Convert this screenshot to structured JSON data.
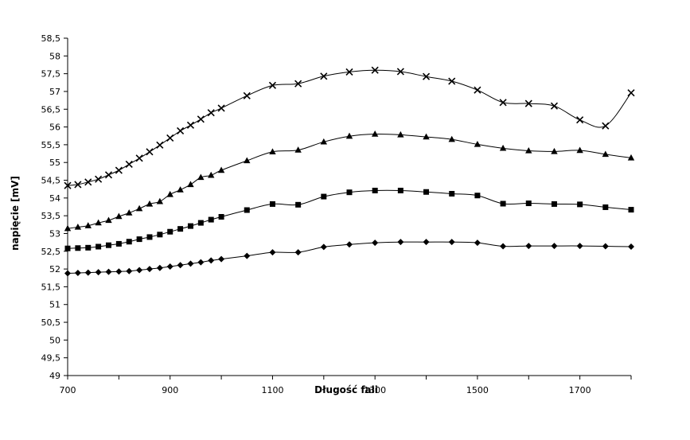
{
  "chart_data": {
    "type": "line",
    "title": "",
    "xlabel": "Długość fali",
    "ylabel": "napięcie [mV]",
    "xlim": [
      700,
      1800
    ],
    "ylim": [
      49,
      58.5
    ],
    "x_ticks": [
      700,
      900,
      1100,
      1300,
      1500,
      1700
    ],
    "y_ticks": [
      "49",
      "49,5",
      "50",
      "50,5",
      "51",
      "51,5",
      "52",
      "52,5",
      "53",
      "53,5",
      "54",
      "54,5",
      "55",
      "55,5",
      "56",
      "56,5",
      "57",
      "57,5",
      "58",
      "58,5"
    ],
    "grid": false,
    "legend": "none",
    "x": [
      700,
      720,
      740,
      760,
      780,
      800,
      820,
      840,
      860,
      880,
      900,
      920,
      940,
      960,
      980,
      1000,
      1050,
      1100,
      1150,
      1200,
      1250,
      1300,
      1350,
      1400,
      1450,
      1500,
      1550,
      1600,
      1650,
      1700,
      1750,
      1800
    ],
    "series": [
      {
        "marker": "x",
        "values": [
          54.35,
          54.38,
          54.45,
          54.53,
          54.65,
          54.78,
          54.95,
          55.12,
          55.3,
          55.49,
          55.69,
          55.89,
          56.05,
          56.22,
          56.4,
          56.53,
          56.88,
          57.17,
          57.22,
          57.43,
          57.55,
          57.6,
          57.56,
          57.42,
          57.29,
          57.04,
          56.69,
          56.66,
          56.59,
          56.2,
          56.03,
          56.96
        ]
      },
      {
        "marker": "triangle",
        "values": [
          53.14,
          53.18,
          53.22,
          53.3,
          53.37,
          53.48,
          53.58,
          53.7,
          53.83,
          53.9,
          54.1,
          54.23,
          54.38,
          54.58,
          54.64,
          54.78,
          55.05,
          55.3,
          55.35,
          55.58,
          55.74,
          55.8,
          55.78,
          55.72,
          55.65,
          55.51,
          55.4,
          55.33,
          55.31,
          55.34,
          55.23,
          55.13
        ]
      },
      {
        "marker": "square",
        "values": [
          52.58,
          52.59,
          52.6,
          52.63,
          52.67,
          52.71,
          52.77,
          52.84,
          52.9,
          52.97,
          53.05,
          53.13,
          53.21,
          53.3,
          53.39,
          53.47,
          53.66,
          53.83,
          53.81,
          54.04,
          54.16,
          54.21,
          54.21,
          54.17,
          54.12,
          54.07,
          53.84,
          53.85,
          53.83,
          53.82,
          53.74,
          53.67
        ]
      },
      {
        "marker": "diamond",
        "values": [
          51.88,
          51.89,
          51.9,
          51.91,
          51.92,
          51.93,
          51.94,
          51.97,
          52.0,
          52.03,
          52.07,
          52.11,
          52.15,
          52.19,
          52.24,
          52.28,
          52.37,
          52.47,
          52.47,
          52.62,
          52.69,
          52.74,
          52.76,
          52.76,
          52.76,
          52.74,
          52.64,
          52.65,
          52.65,
          52.65,
          52.64,
          52.63
        ]
      }
    ]
  }
}
